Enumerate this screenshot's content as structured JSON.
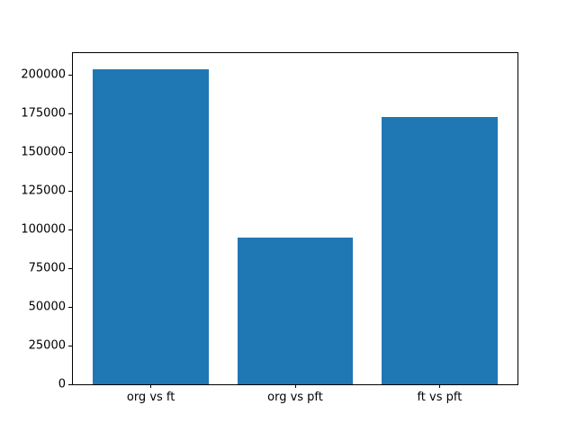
{
  "chart_data": {
    "type": "bar",
    "title": "",
    "xlabel": "",
    "ylabel": "",
    "categories": [
      "org vs ft",
      "org vs pft",
      "ft vs pft"
    ],
    "values": [
      204000,
      95000,
      173000
    ],
    "yticks": [
      0,
      25000,
      50000,
      75000,
      100000,
      125000,
      150000,
      175000,
      200000
    ],
    "ylim": [
      0,
      214200
    ],
    "bar_color": "#1f77b4",
    "bar_width_fraction": 0.8,
    "grid": false,
    "legend": null,
    "axes_background": "#ffffff",
    "spine_color": "#000000",
    "tick_label_color": "#000000"
  }
}
